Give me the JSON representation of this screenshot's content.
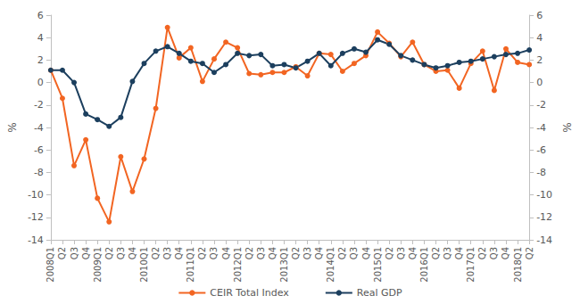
{
  "chart_data": {
    "type": "line",
    "ylabel": "%",
    "y2label": "%",
    "categories": [
      "2008Q1",
      "Q2",
      "Q3",
      "Q4",
      "2009Q1",
      "Q2",
      "Q3",
      "Q4",
      "2010Q1",
      "Q2",
      "Q3",
      "Q4",
      "2011Q1",
      "Q2",
      "Q3",
      "Q4",
      "2012Q1",
      "Q2",
      "Q3",
      "Q4",
      "2013Q1",
      "Q2",
      "Q3",
      "Q4",
      "2014Q1",
      "Q2",
      "Q3",
      "Q4",
      "2015Q1",
      "Q2",
      "Q3",
      "Q4",
      "2016Q1",
      "Q2",
      "Q3",
      "Q4",
      "2017Q1",
      "Q2",
      "Q3",
      "Q4",
      "2018Q1",
      "Q2"
    ],
    "series": [
      {
        "name": "CEIR Total Index",
        "color": "#f26522",
        "marker": "circle",
        "values": [
          1.1,
          -1.4,
          -7.4,
          -5.1,
          -10.3,
          -12.4,
          -6.6,
          -9.7,
          -6.8,
          -2.3,
          4.9,
          2.2,
          3.1,
          0.1,
          2.1,
          3.6,
          3.1,
          0.8,
          0.7,
          0.9,
          0.9,
          1.4,
          0.6,
          2.6,
          2.5,
          1.0,
          1.7,
          2.4,
          4.5,
          3.5,
          2.3,
          3.6,
          1.6,
          1.0,
          1.1,
          -0.5,
          1.7,
          2.8,
          -0.7,
          3.0,
          1.8,
          1.6
        ]
      },
      {
        "name": "Real GDP",
        "color": "#1c3f5e",
        "marker": "circle",
        "values": [
          1.1,
          1.1,
          0.0,
          -2.8,
          -3.3,
          -3.9,
          -3.1,
          0.1,
          1.7,
          2.8,
          3.2,
          2.6,
          1.9,
          1.7,
          0.9,
          1.6,
          2.6,
          2.4,
          2.5,
          1.5,
          1.6,
          1.3,
          1.9,
          2.6,
          1.5,
          2.6,
          3.0,
          2.7,
          3.8,
          3.4,
          2.4,
          2.0,
          1.6,
          1.3,
          1.5,
          1.8,
          1.9,
          2.1,
          2.3,
          2.5,
          2.6,
          2.9
        ]
      }
    ],
    "ylim": [
      -14,
      6
    ],
    "yticks": [
      -14,
      -12,
      -10,
      -8,
      -6,
      -4,
      -2,
      0,
      2,
      4,
      6
    ],
    "y2lim": [
      -14,
      6
    ],
    "y2ticks": [
      -14,
      -12,
      -10,
      -8,
      -6,
      -4,
      -2,
      0,
      2,
      4,
      6
    ],
    "grid": false,
    "legend": "bottom"
  }
}
